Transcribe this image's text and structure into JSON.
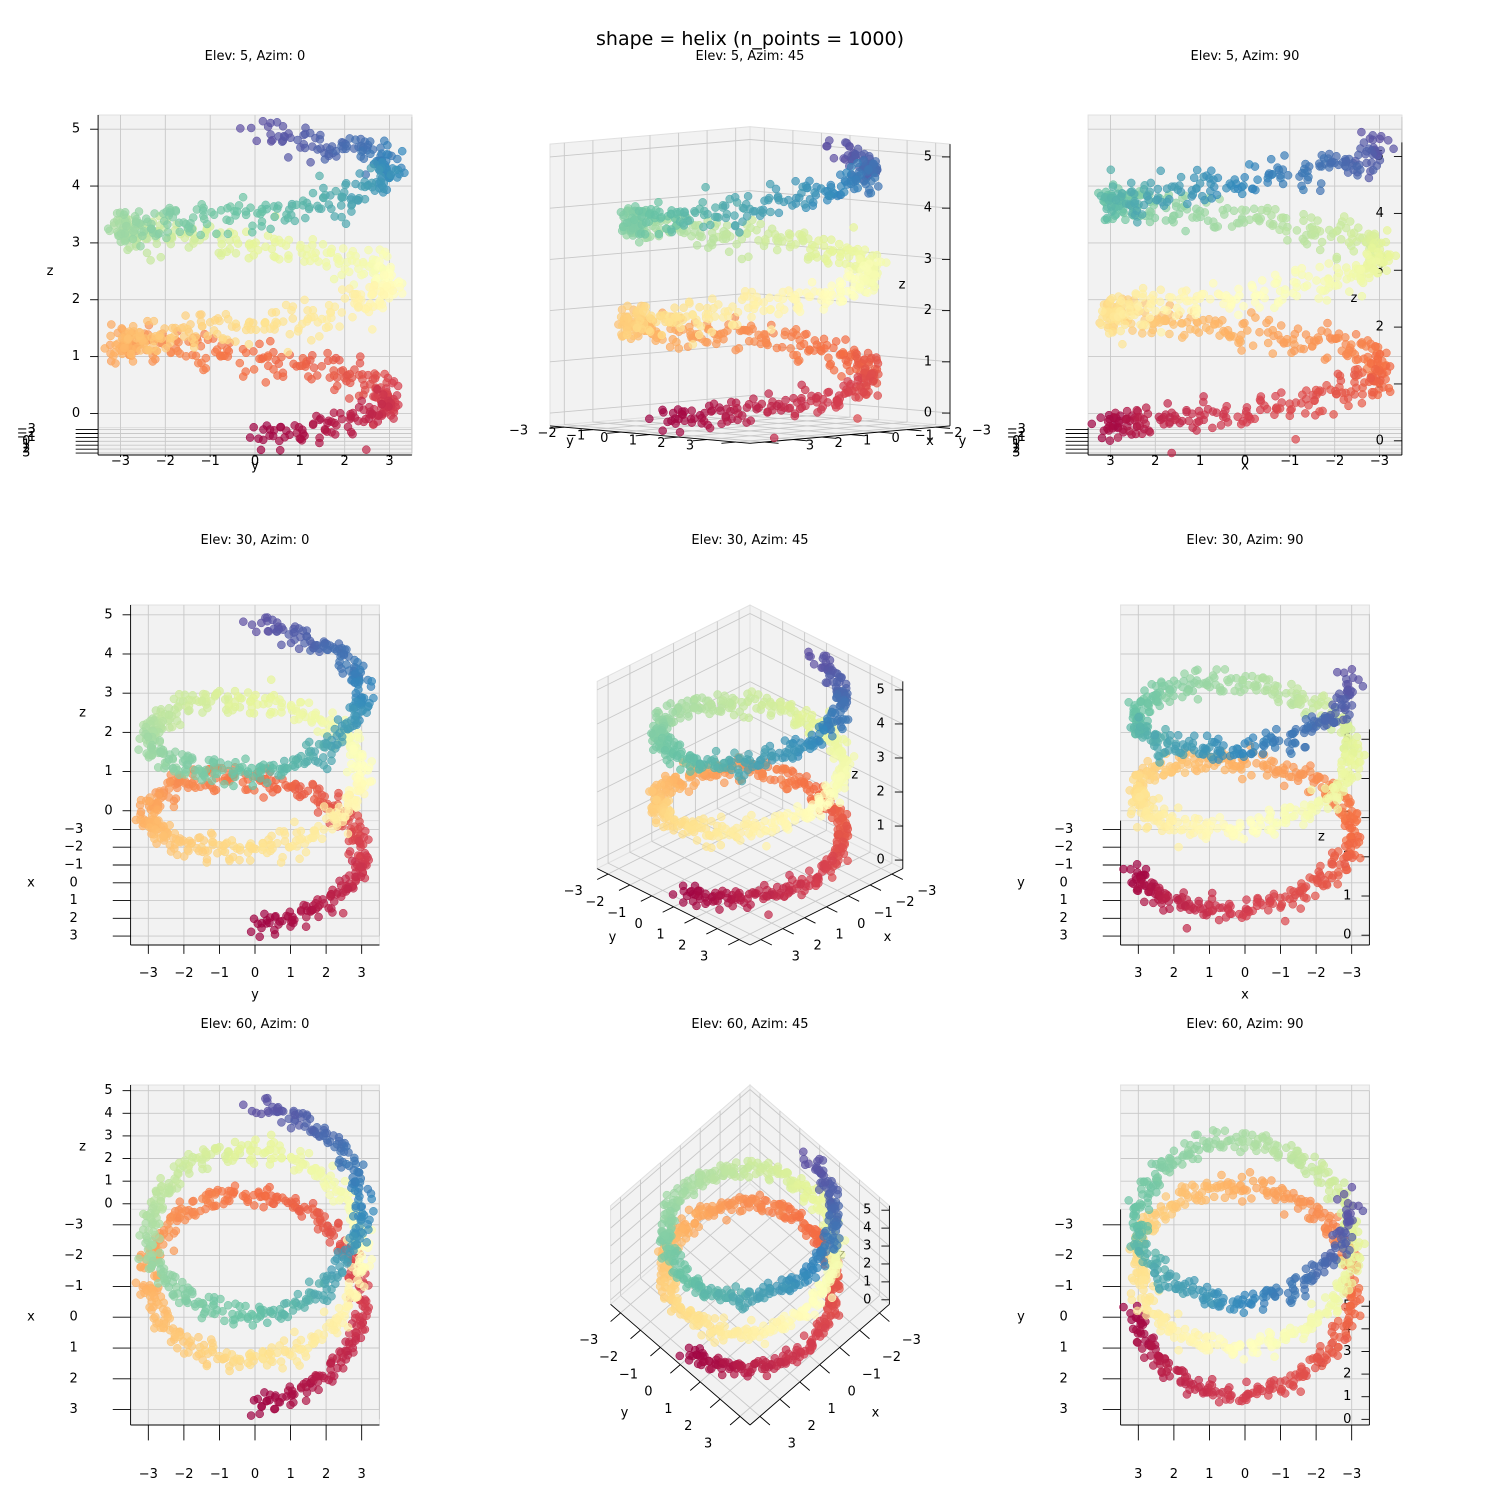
{
  "figure": {
    "title": "shape = helix (n_points = 1000)"
  },
  "chart_data": [
    {
      "type": "scatter",
      "title": "Elev: 5, Azim: 0",
      "elev": 5,
      "azim": 0,
      "xlabel": "x",
      "ylabel": "y",
      "zlabel": "z",
      "xlim": [
        -3.5,
        3.5
      ],
      "ylim": [
        -3.5,
        3.5
      ],
      "zlim": [
        -0.25,
        5.25
      ],
      "xticks": [
        -3,
        -2,
        -1,
        0,
        1,
        2,
        3
      ],
      "yticks": [
        -3,
        -2,
        -1,
        0,
        1,
        2,
        3
      ],
      "zticks": [
        0,
        1,
        2,
        3,
        4,
        5
      ],
      "colormap": "Spectral",
      "grid": true
    },
    {
      "type": "scatter",
      "title": "Elev: 5, Azim: 45",
      "elev": 5,
      "azim": 45,
      "xlabel": "x",
      "ylabel": "y",
      "zlabel": "z",
      "xlim": [
        -3.5,
        3.5
      ],
      "ylim": [
        -3.5,
        3.5
      ],
      "zlim": [
        -0.25,
        5.25
      ],
      "xticks": [
        -3,
        -2,
        -1,
        0,
        1,
        2,
        3
      ],
      "yticks": [
        -3,
        -2,
        -1,
        0,
        1,
        2,
        3
      ],
      "zticks": [
        0,
        1,
        2,
        3,
        4,
        5
      ],
      "colormap": "Spectral",
      "grid": true
    },
    {
      "type": "scatter",
      "title": "Elev: 5, Azim: 90",
      "elev": 5,
      "azim": 90,
      "xlabel": "x",
      "ylabel": "y",
      "zlabel": "z",
      "xlim": [
        -3.5,
        3.5
      ],
      "ylim": [
        -3.5,
        3.5
      ],
      "zlim": [
        -0.25,
        5.25
      ],
      "xticks": [
        -3,
        -2,
        -1,
        0,
        1,
        2,
        3
      ],
      "yticks": [
        -3,
        -2,
        -1,
        0,
        1,
        2,
        3
      ],
      "zticks": [
        0,
        1,
        2,
        3,
        4,
        5
      ],
      "colormap": "Spectral",
      "grid": true
    },
    {
      "type": "scatter",
      "title": "Elev: 30, Azim: 0",
      "elev": 30,
      "azim": 0,
      "xlabel": "x",
      "ylabel": "y",
      "zlabel": "z",
      "xlim": [
        -3.5,
        3.5
      ],
      "ylim": [
        -3.5,
        3.5
      ],
      "zlim": [
        -0.25,
        5.25
      ],
      "xticks": [
        -3,
        -2,
        -1,
        0,
        1,
        2,
        3
      ],
      "yticks": [
        -3,
        -2,
        -1,
        0,
        1,
        2,
        3
      ],
      "zticks": [
        0,
        1,
        2,
        3,
        4,
        5
      ],
      "colormap": "Spectral",
      "grid": true
    },
    {
      "type": "scatter",
      "title": "Elev: 30, Azim: 45",
      "elev": 30,
      "azim": 45,
      "xlabel": "x",
      "ylabel": "y",
      "zlabel": "z",
      "xlim": [
        -3.5,
        3.5
      ],
      "ylim": [
        -3.5,
        3.5
      ],
      "zlim": [
        -0.25,
        5.25
      ],
      "xticks": [
        -3,
        -2,
        -1,
        0,
        1,
        2,
        3
      ],
      "yticks": [
        -3,
        -2,
        -1,
        0,
        1,
        2,
        3
      ],
      "zticks": [
        0,
        1,
        2,
        3,
        4,
        5
      ],
      "colormap": "Spectral",
      "grid": true
    },
    {
      "type": "scatter",
      "title": "Elev: 30, Azim: 90",
      "elev": 30,
      "azim": 90,
      "xlabel": "x",
      "ylabel": "y",
      "zlabel": "z",
      "xlim": [
        -3.5,
        3.5
      ],
      "ylim": [
        -3.5,
        3.5
      ],
      "zlim": [
        -0.25,
        5.25
      ],
      "xticks": [
        -3,
        -2,
        -1,
        0,
        1,
        2,
        3
      ],
      "yticks": [
        -3,
        -2,
        -1,
        0,
        1,
        2,
        3
      ],
      "zticks": [
        0,
        1,
        2,
        3,
        4,
        5
      ],
      "colormap": "Spectral",
      "grid": true
    },
    {
      "type": "scatter",
      "title": "Elev: 60, Azim: 0",
      "elev": 60,
      "azim": 0,
      "xlabel": "x",
      "ylabel": "y",
      "zlabel": "z",
      "xlim": [
        -3.5,
        3.5
      ],
      "ylim": [
        -3.5,
        3.5
      ],
      "zlim": [
        -0.25,
        5.25
      ],
      "xticks": [
        -3,
        -2,
        -1,
        0,
        1,
        2,
        3
      ],
      "yticks": [
        -3,
        -2,
        -1,
        0,
        1,
        2,
        3
      ],
      "zticks": [
        0,
        1,
        2,
        3,
        4,
        5
      ],
      "colormap": "Spectral",
      "grid": true
    },
    {
      "type": "scatter",
      "title": "Elev: 60, Azim: 45",
      "elev": 60,
      "azim": 45,
      "xlabel": "x",
      "ylabel": "y",
      "zlabel": "z",
      "xlim": [
        -3.5,
        3.5
      ],
      "ylim": [
        -3.5,
        3.5
      ],
      "zlim": [
        -0.25,
        5.25
      ],
      "xticks": [
        -3,
        -2,
        -1,
        0,
        1,
        2,
        3
      ],
      "yticks": [
        -3,
        -2,
        -1,
        0,
        1,
        2,
        3
      ],
      "zticks": [
        0,
        1,
        2,
        3,
        4,
        5
      ],
      "colormap": "Spectral",
      "grid": true
    },
    {
      "type": "scatter",
      "title": "Elev: 60, Azim: 90",
      "elev": 60,
      "azim": 90,
      "xlabel": "x",
      "ylabel": "y",
      "zlabel": "z",
      "xlim": [
        -3.5,
        3.5
      ],
      "ylim": [
        -3.5,
        3.5
      ],
      "zlim": [
        -0.25,
        5.25
      ],
      "xticks": [
        -3,
        -2,
        -1,
        0,
        1,
        2,
        3
      ],
      "yticks": [
        -3,
        -2,
        -1,
        0,
        1,
        2,
        3
      ],
      "zticks": [
        0,
        1,
        2,
        3,
        4,
        5
      ],
      "colormap": "Spectral",
      "grid": true
    }
  ],
  "data": {
    "shape": "helix",
    "n_points": 1000,
    "radius": 3,
    "turns": 2.5,
    "z_range": [
      0,
      5
    ],
    "noise_std": 0.15,
    "color_by": "parameter"
  }
}
